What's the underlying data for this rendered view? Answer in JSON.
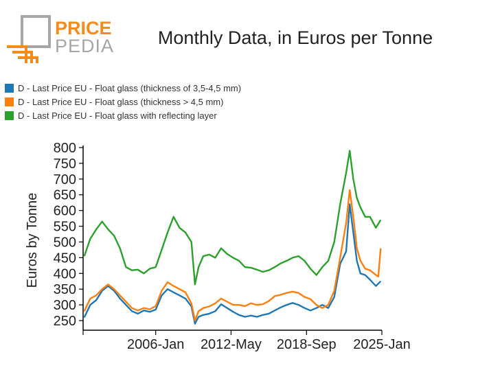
{
  "logo": {
    "word1": "PRICE",
    "word2": "PEDIA",
    "accent": "#f28c1c",
    "gray": "#a6a6a6"
  },
  "chart_data": {
    "type": "line",
    "title": "Monthly Data, in Euros per Tonne",
    "xlabel": "",
    "ylabel": "Euros by Tonne",
    "ylim": [
      225,
      800
    ],
    "yticks": [
      250,
      300,
      350,
      400,
      450,
      500,
      550,
      600,
      650,
      700,
      750,
      800
    ],
    "xlim": [
      1999.9,
      2025.0
    ],
    "xticks": [
      {
        "x": 1999.9,
        "label": ""
      },
      {
        "x": 2006.0,
        "label": "2006-Jan"
      },
      {
        "x": 2012.33,
        "label": "2012-May"
      },
      {
        "x": 2018.67,
        "label": "2018-Sep"
      },
      {
        "x": 2025.0,
        "label": "2025-Jan"
      }
    ],
    "legend_position": "top-left",
    "series": [
      {
        "name": "D - Last Price EU - Float glass (thickness of 3,5-4,5 mm)",
        "color": "#1f77b4",
        "points": [
          [
            2000.0,
            260
          ],
          [
            2000.5,
            300
          ],
          [
            2001.0,
            315
          ],
          [
            2001.5,
            345
          ],
          [
            2002.0,
            360
          ],
          [
            2002.5,
            345
          ],
          [
            2003.0,
            320
          ],
          [
            2003.5,
            300
          ],
          [
            2004.0,
            280
          ],
          [
            2004.5,
            272
          ],
          [
            2005.0,
            282
          ],
          [
            2005.5,
            278
          ],
          [
            2006.0,
            285
          ],
          [
            2006.5,
            330
          ],
          [
            2007.0,
            350
          ],
          [
            2007.5,
            340
          ],
          [
            2008.0,
            330
          ],
          [
            2008.5,
            320
          ],
          [
            2009.0,
            295
          ],
          [
            2009.3,
            240
          ],
          [
            2009.6,
            262
          ],
          [
            2010.0,
            268
          ],
          [
            2010.5,
            272
          ],
          [
            2011.0,
            280
          ],
          [
            2011.5,
            302
          ],
          [
            2012.0,
            290
          ],
          [
            2012.5,
            278
          ],
          [
            2013.0,
            268
          ],
          [
            2013.5,
            262
          ],
          [
            2014.0,
            266
          ],
          [
            2014.5,
            262
          ],
          [
            2015.0,
            268
          ],
          [
            2015.5,
            272
          ],
          [
            2016.0,
            282
          ],
          [
            2016.5,
            292
          ],
          [
            2017.0,
            300
          ],
          [
            2017.5,
            306
          ],
          [
            2018.0,
            300
          ],
          [
            2018.5,
            290
          ],
          [
            2019.0,
            282
          ],
          [
            2019.5,
            290
          ],
          [
            2020.0,
            300
          ],
          [
            2020.5,
            290
          ],
          [
            2021.0,
            325
          ],
          [
            2021.5,
            430
          ],
          [
            2022.0,
            470
          ],
          [
            2022.3,
            620
          ],
          [
            2022.6,
            530
          ],
          [
            2022.9,
            440
          ],
          [
            2023.2,
            400
          ],
          [
            2023.6,
            395
          ],
          [
            2024.0,
            380
          ],
          [
            2024.5,
            360
          ],
          [
            2024.9,
            375
          ]
        ]
      },
      {
        "name": "D - Last Price EU - Float glass (thickness > 4,5 mm)",
        "color": "#ff7f0e",
        "points": [
          [
            2000.0,
            280
          ],
          [
            2000.5,
            320
          ],
          [
            2001.0,
            330
          ],
          [
            2001.5,
            350
          ],
          [
            2002.0,
            365
          ],
          [
            2002.5,
            350
          ],
          [
            2003.0,
            330
          ],
          [
            2003.5,
            310
          ],
          [
            2004.0,
            290
          ],
          [
            2004.5,
            282
          ],
          [
            2005.0,
            290
          ],
          [
            2005.5,
            286
          ],
          [
            2006.0,
            296
          ],
          [
            2006.5,
            345
          ],
          [
            2007.0,
            372
          ],
          [
            2007.5,
            360
          ],
          [
            2008.0,
            350
          ],
          [
            2008.5,
            340
          ],
          [
            2009.0,
            305
          ],
          [
            2009.3,
            250
          ],
          [
            2009.6,
            280
          ],
          [
            2010.0,
            290
          ],
          [
            2010.5,
            295
          ],
          [
            2011.0,
            305
          ],
          [
            2011.5,
            320
          ],
          [
            2012.0,
            310
          ],
          [
            2012.5,
            300
          ],
          [
            2013.0,
            300
          ],
          [
            2013.5,
            296
          ],
          [
            2014.0,
            305
          ],
          [
            2014.5,
            300
          ],
          [
            2015.0,
            302
          ],
          [
            2015.5,
            312
          ],
          [
            2016.0,
            328
          ],
          [
            2016.5,
            332
          ],
          [
            2017.0,
            338
          ],
          [
            2017.5,
            342
          ],
          [
            2018.0,
            338
          ],
          [
            2018.5,
            325
          ],
          [
            2019.0,
            318
          ],
          [
            2019.5,
            300
          ],
          [
            2020.0,
            290
          ],
          [
            2020.5,
            300
          ],
          [
            2021.0,
            345
          ],
          [
            2021.5,
            450
          ],
          [
            2022.0,
            560
          ],
          [
            2022.3,
            665
          ],
          [
            2022.6,
            580
          ],
          [
            2022.9,
            480
          ],
          [
            2023.2,
            440
          ],
          [
            2023.6,
            415
          ],
          [
            2024.0,
            410
          ],
          [
            2024.5,
            395
          ],
          [
            2024.7,
            390
          ],
          [
            2024.9,
            480
          ]
        ]
      },
      {
        "name": "D - Last Price EU - Float glass with reflecting layer",
        "color": "#2ca02c",
        "points": [
          [
            2000.0,
            455
          ],
          [
            2000.5,
            510
          ],
          [
            2001.0,
            540
          ],
          [
            2001.5,
            565
          ],
          [
            2002.0,
            540
          ],
          [
            2002.5,
            520
          ],
          [
            2003.0,
            480
          ],
          [
            2003.5,
            420
          ],
          [
            2004.0,
            410
          ],
          [
            2004.5,
            412
          ],
          [
            2005.0,
            400
          ],
          [
            2005.5,
            415
          ],
          [
            2006.0,
            420
          ],
          [
            2006.5,
            475
          ],
          [
            2007.0,
            530
          ],
          [
            2007.5,
            580
          ],
          [
            2008.0,
            545
          ],
          [
            2008.5,
            530
          ],
          [
            2009.0,
            500
          ],
          [
            2009.3,
            365
          ],
          [
            2009.6,
            420
          ],
          [
            2010.0,
            455
          ],
          [
            2010.5,
            460
          ],
          [
            2011.0,
            450
          ],
          [
            2011.5,
            480
          ],
          [
            2012.0,
            462
          ],
          [
            2012.5,
            450
          ],
          [
            2013.0,
            440
          ],
          [
            2013.5,
            420
          ],
          [
            2014.0,
            418
          ],
          [
            2014.5,
            412
          ],
          [
            2015.0,
            405
          ],
          [
            2015.5,
            410
          ],
          [
            2016.0,
            420
          ],
          [
            2016.5,
            432
          ],
          [
            2017.0,
            440
          ],
          [
            2017.5,
            450
          ],
          [
            2018.0,
            455
          ],
          [
            2018.5,
            440
          ],
          [
            2019.0,
            415
          ],
          [
            2019.5,
            395
          ],
          [
            2020.0,
            420
          ],
          [
            2020.5,
            440
          ],
          [
            2021.0,
            500
          ],
          [
            2021.5,
            620
          ],
          [
            2022.0,
            720
          ],
          [
            2022.3,
            790
          ],
          [
            2022.6,
            700
          ],
          [
            2022.9,
            640
          ],
          [
            2023.2,
            610
          ],
          [
            2023.6,
            580
          ],
          [
            2024.0,
            580
          ],
          [
            2024.5,
            545
          ],
          [
            2024.9,
            570
          ]
        ]
      }
    ]
  }
}
